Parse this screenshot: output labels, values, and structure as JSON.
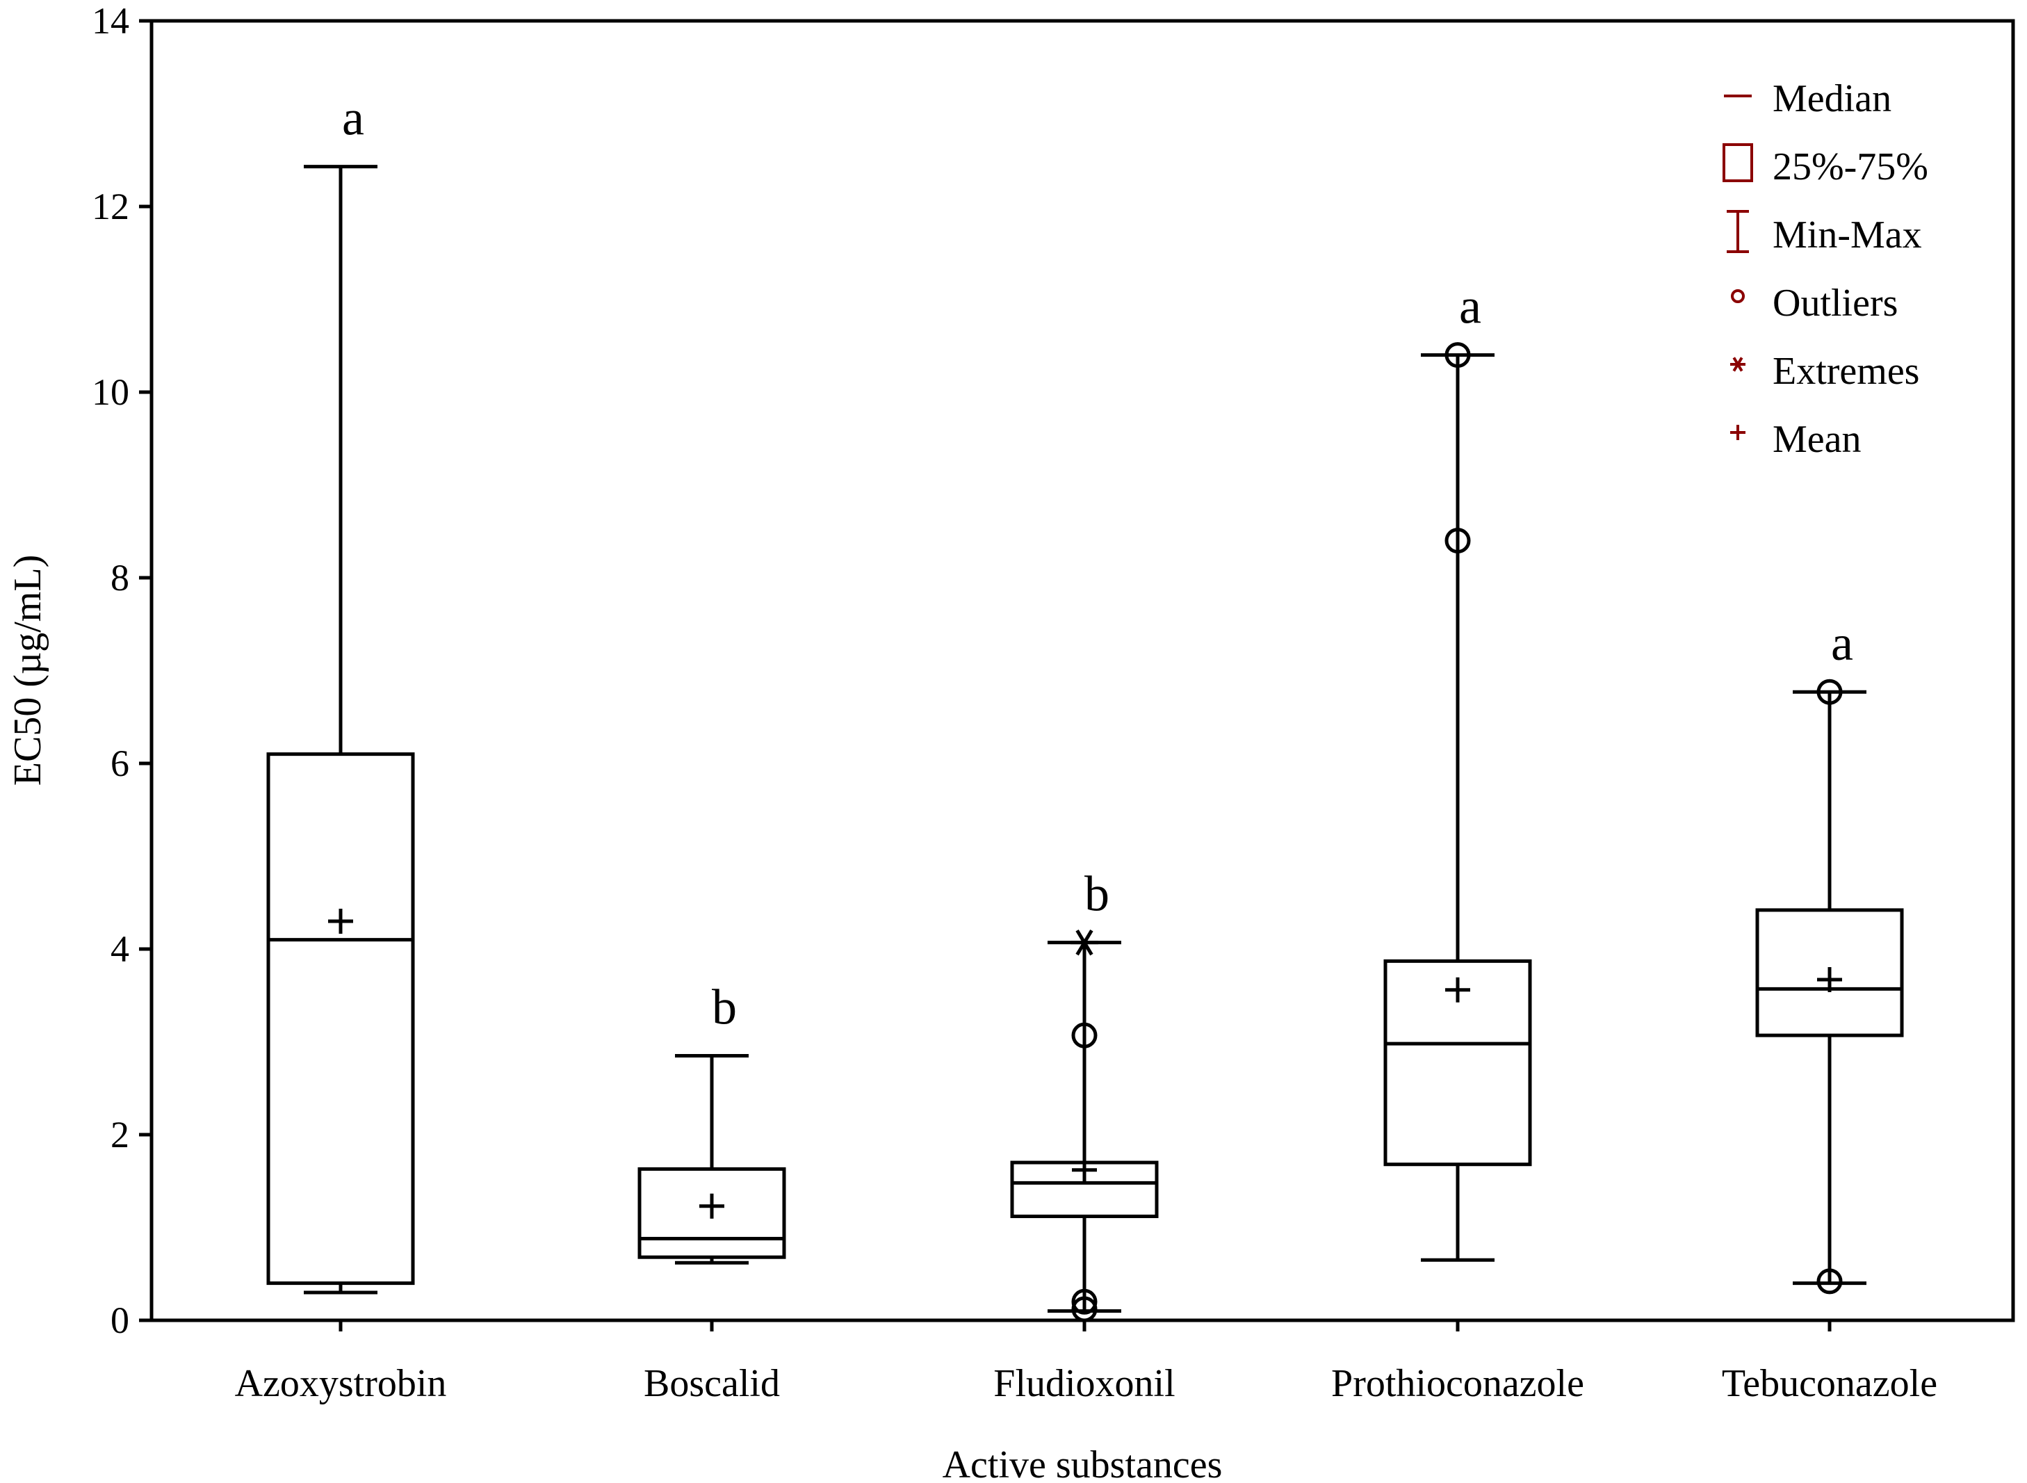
{
  "chart_data": {
    "type": "boxplot",
    "xlabel": "Active substances",
    "ylabel": "EC50 (µg/mL)",
    "ylim": [
      0,
      14
    ],
    "yticks": [
      0,
      2,
      4,
      6,
      8,
      10,
      12,
      14
    ],
    "categories": [
      "Azoxystrobin",
      "Boscalid",
      "Fludioxonil",
      "Prothioconazole",
      "Tebuconazole"
    ],
    "series": [
      {
        "name": "Azoxystrobin",
        "min": 0.3,
        "q1": 0.4,
        "median": 4.1,
        "q3": 6.1,
        "max": 12.43,
        "mean": 4.3,
        "outliers": [],
        "extremes": [],
        "letter": "a"
      },
      {
        "name": "Boscalid",
        "min": 0.62,
        "q1": 0.68,
        "median": 0.88,
        "q3": 1.63,
        "max": 2.85,
        "mean": 1.23,
        "outliers": [],
        "extremes": [],
        "letter": "b"
      },
      {
        "name": "Fludioxonil",
        "min": 0.1,
        "q1": 1.12,
        "median": 1.48,
        "q3": 1.7,
        "max": 4.07,
        "mean": 1.62,
        "outliers": [
          3.07,
          0.2,
          0.12
        ],
        "extremes": [
          4.07
        ],
        "letter": "b"
      },
      {
        "name": "Prothioconazole",
        "min": 0.65,
        "q1": 1.68,
        "median": 2.98,
        "q3": 3.87,
        "max": 10.4,
        "mean": 3.56,
        "outliers": [
          10.4,
          8.4
        ],
        "extremes": [],
        "letter": "a"
      },
      {
        "name": "Tebuconazole",
        "min": 0.4,
        "q1": 3.07,
        "median": 3.57,
        "q3": 4.42,
        "max": 6.77,
        "mean": 3.67,
        "outliers": [
          6.77,
          0.42
        ],
        "extremes": [],
        "letter": "a"
      }
    ],
    "legend": {
      "position": "top-right",
      "items": [
        {
          "label": "Median",
          "symbol": "median-line"
        },
        {
          "label": "25%-75%",
          "symbol": "box"
        },
        {
          "label": "Min-Max",
          "symbol": "whisker"
        },
        {
          "label": "Outliers",
          "symbol": "circle"
        },
        {
          "label": "Extremes",
          "symbol": "asterisk"
        },
        {
          "label": "Mean",
          "symbol": "plus"
        }
      ]
    }
  }
}
